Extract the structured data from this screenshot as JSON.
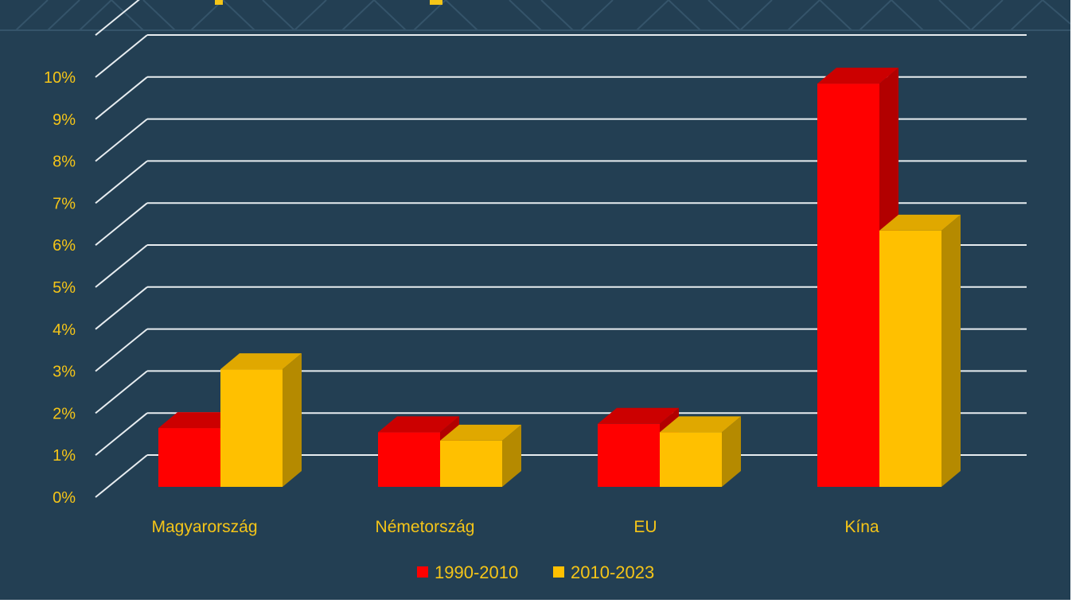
{
  "chart_data": {
    "type": "bar",
    "title": "",
    "categories": [
      "Magyarország",
      "Németország",
      "EU",
      "Kína"
    ],
    "series": [
      {
        "name": "1990-2010",
        "values": [
          1.4,
          1.3,
          1.5,
          9.6
        ],
        "color": "#ff0000",
        "side_color": "#b20000",
        "top_color": "#cc0000"
      },
      {
        "name": "2010-2023",
        "values": [
          2.8,
          1.1,
          1.3,
          6.1
        ],
        "color": "#ffc000",
        "side_color": "#b58a00",
        "top_color": "#e0a800"
      }
    ],
    "y_ticks": [
      "0%",
      "1%",
      "2%",
      "3%",
      "4%",
      "5%",
      "6%",
      "7%",
      "8%",
      "9%",
      "10%"
    ],
    "ylim": [
      0,
      10
    ],
    "grid": true,
    "legend_position": "bottom",
    "background": "#233f53",
    "label_color": "#f5c518"
  }
}
